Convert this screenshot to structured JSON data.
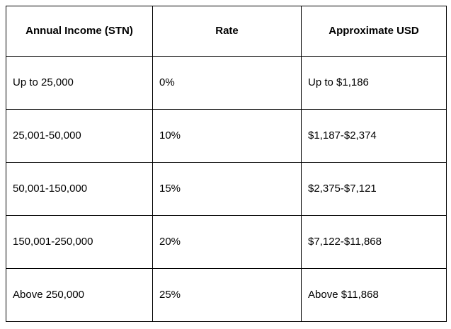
{
  "table": {
    "headers": {
      "income": "Annual Income (STN)",
      "rate": "Rate",
      "usd": "Approximate USD"
    },
    "rows": [
      {
        "income": "Up to 25,000",
        "rate": "0%",
        "usd": "Up to $1,186"
      },
      {
        "income": "25,001-50,000",
        "rate": "10%",
        "usd": "$1,187-$2,374"
      },
      {
        "income": "50,001-150,000",
        "rate": "15%",
        "usd": "$2,375-$7,121"
      },
      {
        "income": "150,001-250,000",
        "rate": "20%",
        "usd": "$7,122-$11,868"
      },
      {
        "income": "Above 250,000",
        "rate": "25%",
        "usd": "Above $11,868"
      }
    ],
    "colors": {
      "border": "#000000",
      "text": "#000000",
      "background": "#ffffff"
    }
  }
}
